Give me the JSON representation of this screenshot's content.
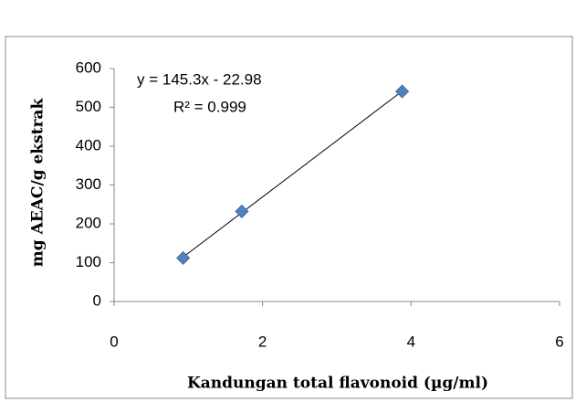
{
  "chart_data": {
    "type": "scatter",
    "x_label": "Kandungan total flavonoid (µg/ml)",
    "y_label": "mg AEAC/g ekstrak",
    "annotations": [
      "y = 145.3x - 22.98",
      "R² = 0.999"
    ],
    "series": [
      {
        "name": null,
        "color": "#4f81bd",
        "x": [
          0.93,
          1.72,
          3.88
        ],
        "values": [
          112,
          232,
          541
        ]
      }
    ],
    "xlim": [
      0,
      6
    ],
    "xticks": [
      0,
      2,
      4,
      6
    ],
    "ylim": [
      0,
      600
    ],
    "yticks": [
      0,
      100,
      200,
      300,
      400,
      500,
      600
    ],
    "trendline": true,
    "grid": false
  }
}
